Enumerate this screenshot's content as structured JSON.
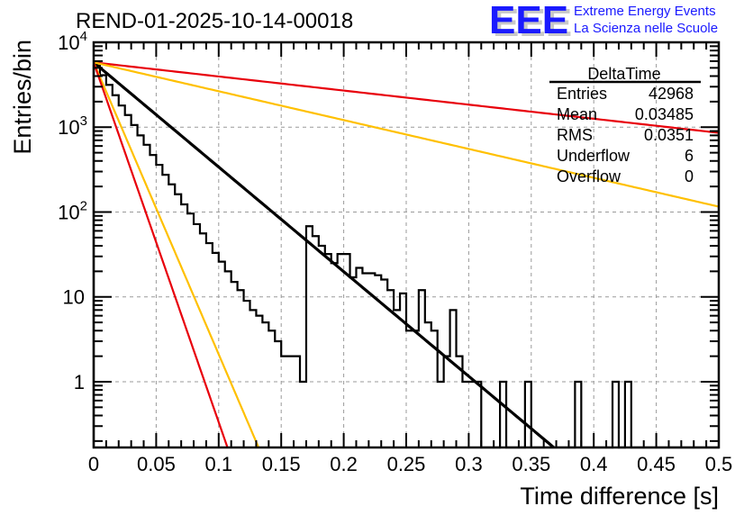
{
  "logo": {
    "mark": "EEE",
    "line1": "Extreme Energy Events",
    "line2": "La Scienza nelle Scuole",
    "color": "#1a1aff"
  },
  "chart_data": {
    "type": "histogram",
    "title": "REND-01-2025-10-14-00018",
    "xlabel": "Time difference [s]",
    "ylabel": "Entries/bin",
    "xlim": [
      0,
      0.5
    ],
    "ylim": [
      0.168,
      10000
    ],
    "yscale": "log",
    "grid": true,
    "x_ticks": [
      "0",
      "0.05",
      "0.1",
      "0.15",
      "0.2",
      "0.25",
      "0.3",
      "0.35",
      "0.4",
      "0.45",
      "0.5"
    ],
    "x_tick_values": [
      0,
      0.05,
      0.1,
      0.15,
      0.2,
      0.25,
      0.3,
      0.35,
      0.4,
      0.45,
      0.5
    ],
    "y_ticks": [
      {
        "value": 1,
        "base": "1",
        "exp": ""
      },
      {
        "value": 10,
        "base": "10",
        "exp": ""
      },
      {
        "value": 100,
        "base": "10",
        "exp": "2"
      },
      {
        "value": 1000,
        "base": "10",
        "exp": "3"
      },
      {
        "value": 10000,
        "base": "10",
        "exp": "4"
      }
    ],
    "histogram": {
      "name": "DeltaTime",
      "bin_width": 0.005,
      "x_start": 0,
      "counts": [
        5300,
        4100,
        3150,
        2380,
        1800,
        1390,
        1060,
        800,
        620,
        470,
        360,
        275,
        212,
        162,
        123,
        96,
        72,
        56,
        43,
        33,
        26,
        20,
        15,
        12,
        9,
        7,
        6,
        5,
        4,
        3,
        2,
        2,
        2,
        1,
        1,
        1,
        0,
        1,
        0,
        0,
        1,
        0,
        0,
        0,
        0,
        0,
        0,
        0,
        0,
        0,
        0,
        0,
        0,
        0,
        0,
        0,
        0,
        0,
        0,
        0,
        0,
        0,
        0,
        0,
        0,
        0,
        0,
        0,
        0,
        0,
        0,
        0,
        0,
        0,
        0,
        0,
        0,
        0,
        0,
        0,
        0,
        0,
        0,
        0,
        0,
        0,
        0,
        0,
        0,
        0,
        0,
        0,
        0,
        0,
        0,
        0,
        0,
        0,
        0,
        0
      ],
      "tail_override": [
        [
          0.17,
          68
        ],
        [
          0.175,
          52
        ],
        [
          0.18,
          40
        ],
        [
          0.185,
          32
        ],
        [
          0.19,
          25
        ],
        [
          0.195,
          32
        ],
        [
          0.2,
          32
        ],
        [
          0.205,
          17
        ],
        [
          0.21,
          22
        ],
        [
          0.215,
          19
        ],
        [
          0.22,
          19
        ],
        [
          0.225,
          18
        ],
        [
          0.23,
          16
        ],
        [
          0.235,
          12
        ],
        [
          0.24,
          7
        ],
        [
          0.245,
          11
        ],
        [
          0.25,
          4
        ],
        [
          0.255,
          4
        ],
        [
          0.26,
          12
        ],
        [
          0.265,
          5
        ],
        [
          0.27,
          4
        ],
        [
          0.275,
          1
        ],
        [
          0.28,
          2
        ],
        [
          0.285,
          7
        ],
        [
          0.29,
          2
        ],
        [
          0.295,
          1
        ],
        [
          0.3,
          1
        ],
        [
          0.305,
          1
        ],
        [
          0.31,
          0
        ],
        [
          0.315,
          0
        ],
        [
          0.32,
          0
        ],
        [
          0.325,
          1
        ],
        [
          0.33,
          0
        ],
        [
          0.335,
          0
        ],
        [
          0.34,
          0
        ],
        [
          0.345,
          1
        ],
        [
          0.35,
          0
        ],
        [
          0.385,
          1
        ],
        [
          0.415,
          1
        ],
        [
          0.425,
          1
        ]
      ]
    },
    "series": [
      {
        "name": "fit",
        "color": "#000000",
        "type": "exp",
        "a": 5800,
        "decades_per_unit": 12.33,
        "x_end": 0.368
      },
      {
        "name": "upper-red",
        "color": "#e8000b",
        "type": "exp",
        "a": 5800,
        "decades_per_unit": 1.66,
        "x_end": 0.5
      },
      {
        "name": "upper-yellow",
        "color": "#ffc000",
        "type": "exp",
        "a": 5800,
        "decades_per_unit": 3.4,
        "x_end": 0.5
      },
      {
        "name": "lower-yellow",
        "color": "#ffc000",
        "type": "exp",
        "a": 5800,
        "decades_per_unit": 34.4,
        "x_end": 0.132
      },
      {
        "name": "lower-red",
        "color": "#e8000b",
        "type": "exp",
        "a": 5800,
        "decades_per_unit": 42.4,
        "x_end": 0.107
      }
    ],
    "stats_box": {
      "title": "DeltaTime",
      "rows": [
        {
          "label": "Entries",
          "value": "42968"
        },
        {
          "label": "Mean",
          "value": "0.03485"
        },
        {
          "label": "RMS",
          "value": "0.0351"
        },
        {
          "label": "Underflow",
          "value": "6"
        },
        {
          "label": "Overflow",
          "value": "0"
        }
      ]
    }
  }
}
